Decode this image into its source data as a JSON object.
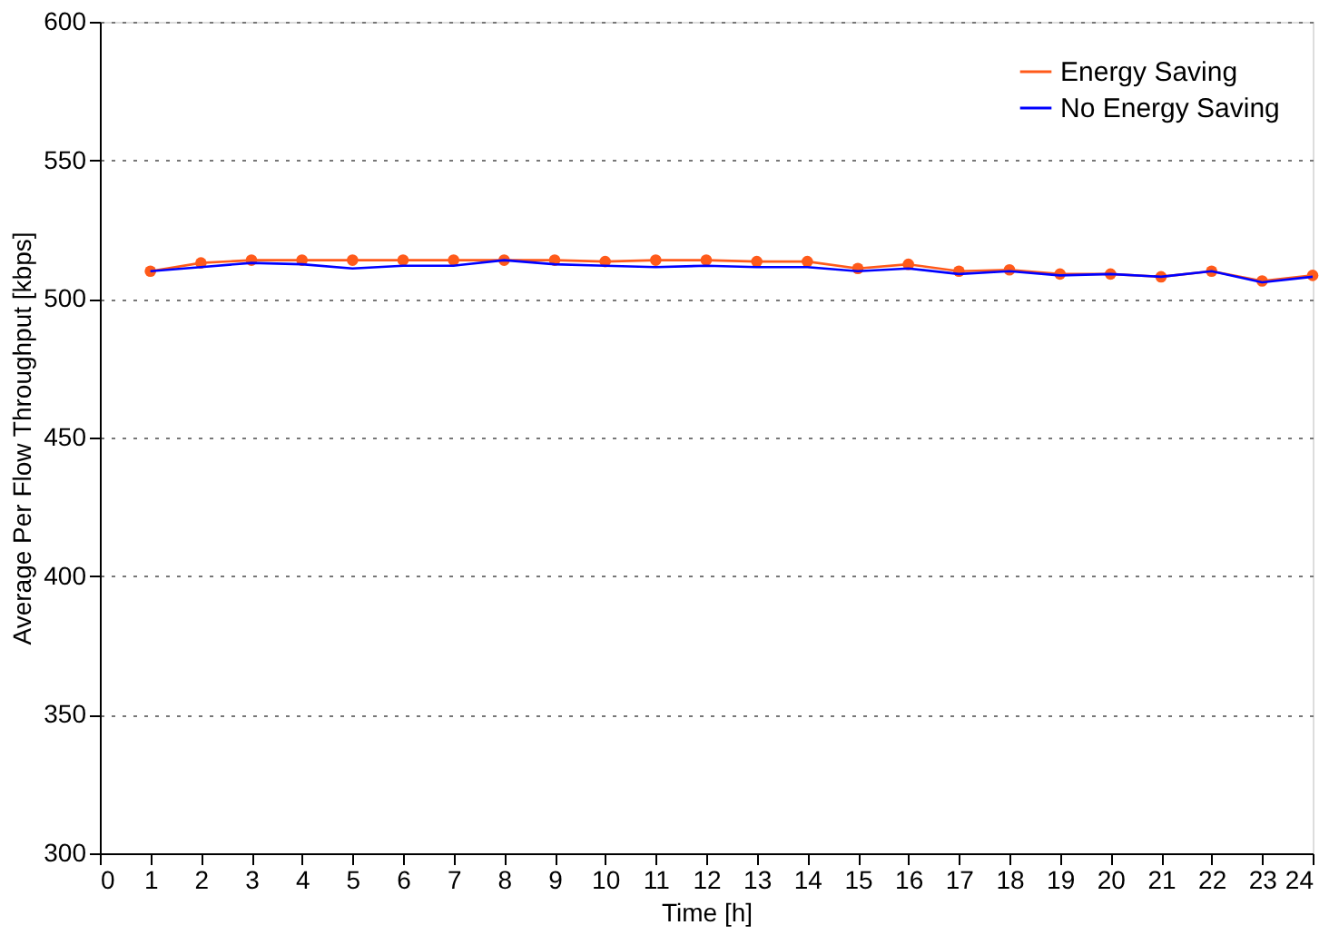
{
  "chart_data": {
    "type": "line",
    "xlabel": "Time [h]",
    "ylabel": "Average Per Flow Throughput [kbps]",
    "x": [
      1,
      2,
      3,
      4,
      5,
      6,
      7,
      8,
      9,
      10,
      11,
      12,
      13,
      14,
      15,
      16,
      17,
      18,
      19,
      20,
      21,
      22,
      23,
      24
    ],
    "series": [
      {
        "name": "Energy Saving",
        "color": "#ff5a1a",
        "marker": "circle",
        "values": [
          510,
          513,
          514,
          514,
          514,
          514,
          514,
          514,
          514,
          513.5,
          514,
          514,
          513.5,
          513.5,
          511,
          512.5,
          510,
          510.5,
          509,
          509,
          508,
          510,
          506.5,
          508.5
        ]
      },
      {
        "name": "No Energy Saving",
        "color": "#0000ff",
        "marker": "none",
        "values": [
          510,
          511.5,
          513,
          512.5,
          511,
          512,
          512,
          514,
          512.5,
          512,
          511.5,
          512,
          511.5,
          511.5,
          510,
          511,
          509,
          510,
          508.5,
          509,
          508,
          510,
          506,
          508
        ]
      }
    ],
    "xlim": [
      0,
      24
    ],
    "xticks": [
      0,
      1,
      2,
      3,
      4,
      5,
      6,
      7,
      8,
      9,
      10,
      11,
      12,
      13,
      14,
      15,
      16,
      17,
      18,
      19,
      20,
      21,
      22,
      23,
      24
    ],
    "ylim": [
      300,
      600
    ],
    "yticks": [
      300,
      350,
      400,
      450,
      500,
      550,
      600
    ],
    "grid": "y",
    "legend": "top right",
    "line_style": "solid"
  }
}
